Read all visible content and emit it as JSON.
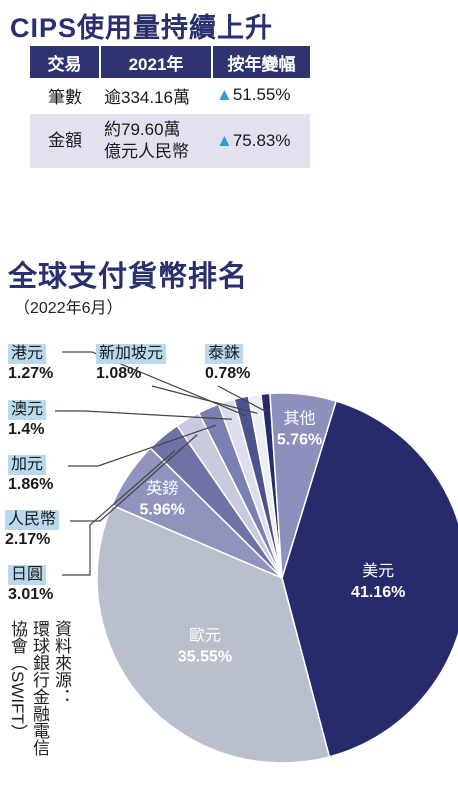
{
  "cips": {
    "title": "CIPS使用量持續上升",
    "headers": [
      "交易",
      "2021年",
      "按年變幅"
    ],
    "rows": [
      {
        "label": "筆數",
        "value": "逾334.16萬",
        "change": "51.55%"
      },
      {
        "label": "金額",
        "value_line1": "約79.60萬",
        "value_line2": "億元人民幣",
        "change": "75.83%"
      }
    ],
    "up_arrow": "▲"
  },
  "ranking": {
    "title": "全球支付貨幣排名",
    "subtitle": "（2022年6月）"
  },
  "source": {
    "line1": "資料來源：",
    "line2": "環球銀行金融電信",
    "line3": "協會（SWIFT）"
  },
  "chart_data": {
    "type": "pie",
    "slices": [
      {
        "name": "美元",
        "value": 41.16,
        "label": "41.16%",
        "color": "#272b6b"
      },
      {
        "name": "歐元",
        "value": 35.55,
        "label": "35.55%",
        "color": "#b9bfcd"
      },
      {
        "name": "英鎊",
        "value": 5.96,
        "label": "5.96%",
        "color": "#8f93be"
      },
      {
        "name": "日圓",
        "value": 3.01,
        "label": "3.01%",
        "color": "#6e72a6"
      },
      {
        "name": "人民幣",
        "value": 2.17,
        "label": "2.17%",
        "color": "#c8cae0"
      },
      {
        "name": "加元",
        "value": 1.86,
        "label": "1.86%",
        "color": "#7b7fb2"
      },
      {
        "name": "澳元",
        "value": 1.4,
        "label": "1.4%",
        "color": "#dcdded"
      },
      {
        "name": "港元",
        "value": 1.27,
        "label": "1.27%",
        "color": "#4e528e"
      },
      {
        "name": "新加坡元",
        "value": 1.08,
        "label": "1.08%",
        "color": "#eceef5"
      },
      {
        "name": "泰銖",
        "value": 0.78,
        "label": "0.78%",
        "color": "#272b6b"
      },
      {
        "name": "其他",
        "value": 5.76,
        "label": "5.76%",
        "color": "#8d90bc"
      }
    ]
  }
}
